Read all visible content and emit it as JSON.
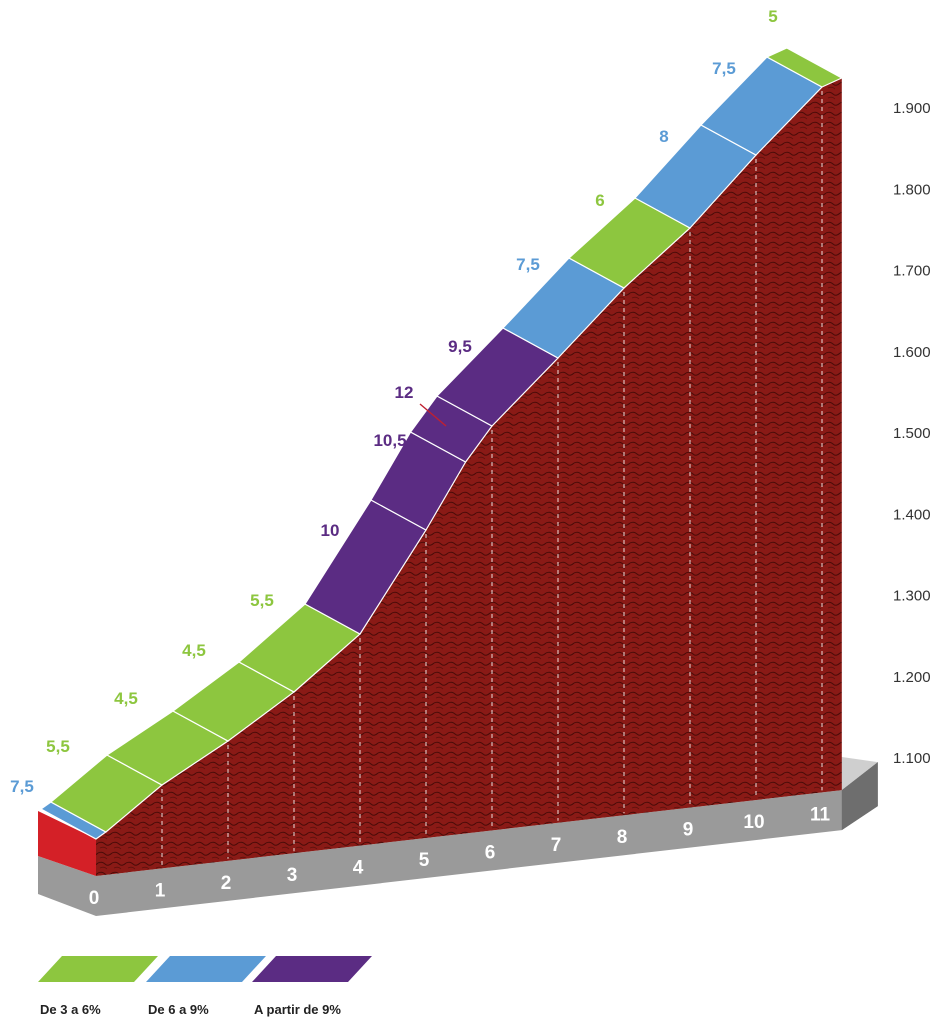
{
  "chart_data": {
    "type": "area",
    "km_labels": [
      "0",
      "1",
      "2",
      "3",
      "4",
      "5",
      "6",
      "7",
      "8",
      "9",
      "10",
      "11"
    ],
    "altitude_ticks": [
      "1.100",
      "1.200",
      "1.300",
      "1.400",
      "1.500",
      "1.600",
      "1.700",
      "1.800",
      "1.900"
    ],
    "altitude_values": [
      1100,
      1200,
      1300,
      1400,
      1500,
      1600,
      1700,
      1800,
      1900
    ],
    "ylim": [
      1100,
      1960
    ],
    "segments": [
      {
        "label": "7,5",
        "km_start": 0,
        "km_end": 0.15,
        "grade": 7.5,
        "category": "mid"
      },
      {
        "label": "5,5",
        "km_start": 0.15,
        "km_end": 1,
        "grade": 5.5,
        "category": "low"
      },
      {
        "label": "4,5",
        "km_start": 1,
        "km_end": 2,
        "grade": 4.5,
        "category": "low"
      },
      {
        "label": "4,5",
        "km_start": 2,
        "km_end": 3,
        "grade": 4.5,
        "category": "low"
      },
      {
        "label": "5,5",
        "km_start": 3,
        "km_end": 4,
        "grade": 5.5,
        "category": "low"
      },
      {
        "label": "10",
        "km_start": 4,
        "km_end": 5,
        "grade": 10,
        "category": "high"
      },
      {
        "label": "10,5",
        "km_start": 5,
        "km_end": 5.6,
        "grade": 10.5,
        "category": "high"
      },
      {
        "label": "12",
        "km_start": 5.6,
        "km_end": 6,
        "grade": 12,
        "category": "high"
      },
      {
        "label": "9,5",
        "km_start": 6,
        "km_end": 7,
        "grade": 9.5,
        "category": "high"
      },
      {
        "label": "7,5",
        "km_start": 7,
        "km_end": 8,
        "grade": 7.5,
        "category": "mid"
      },
      {
        "label": "6",
        "km_start": 8,
        "km_end": 9,
        "grade": 6,
        "category": "low"
      },
      {
        "label": "8",
        "km_start": 9,
        "km_end": 10,
        "grade": 8,
        "category": "mid"
      },
      {
        "label": "7,5",
        "km_start": 10,
        "km_end": 11,
        "grade": 7.5,
        "category": "mid"
      },
      {
        "label": "5",
        "km_start": 11,
        "km_end": 11.3,
        "grade": 5,
        "category": "low"
      }
    ],
    "legend": [
      {
        "key": "low",
        "label": "De 3 a 6%",
        "color": "#8dc63f"
      },
      {
        "key": "mid",
        "label": "De 6 a 9%",
        "color": "#5b9bd5"
      },
      {
        "key": "high",
        "label": "A partir de 9%",
        "color": "#5b2c83"
      }
    ],
    "colors": {
      "terrain": "#8a1a16",
      "base": "#9a9a9a",
      "start_block": "#d42027"
    }
  }
}
